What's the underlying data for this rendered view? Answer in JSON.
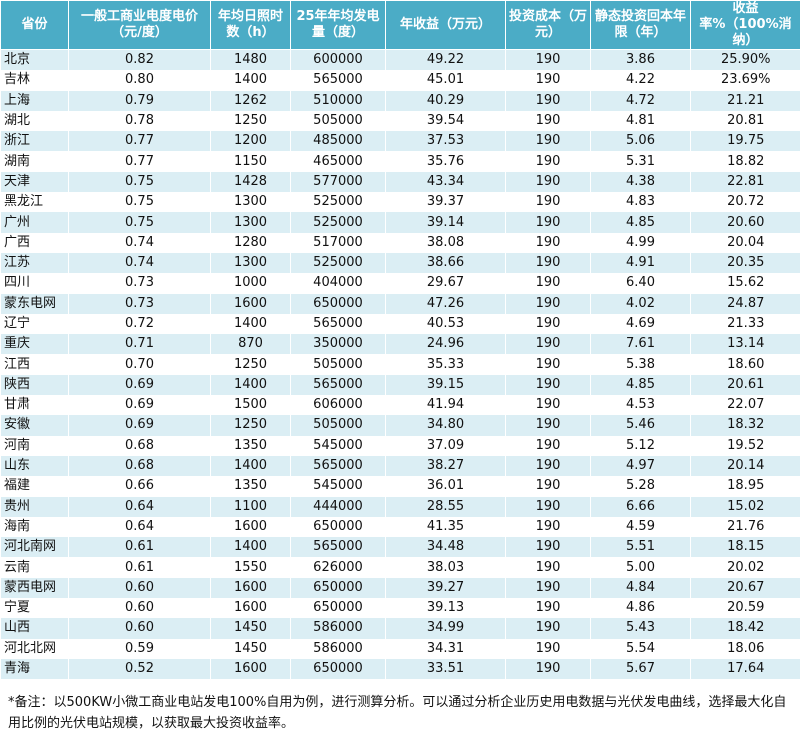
{
  "table": {
    "header": [
      "省份",
      "一般工商业电度电价（元/度）",
      "年均日照时数（h）",
      "25年年均发电量（度）",
      "年收益（万元）",
      "投资成本（万元）",
      "静态投资回本年限（年）",
      "收益率%（100%消纳）"
    ],
    "rows": [
      [
        "北京",
        "0.82",
        "1480",
        "600000",
        "49.22",
        "190",
        "3.86",
        "25.90%"
      ],
      [
        "吉林",
        "0.80",
        "1400",
        "565000",
        "45.01",
        "190",
        "4.22",
        "23.69%"
      ],
      [
        "上海",
        "0.79",
        "1262",
        "510000",
        "40.29",
        "190",
        "4.72",
        "21.21"
      ],
      [
        "湖北",
        "0.78",
        "1250",
        "505000",
        "39.54",
        "190",
        "4.81",
        "20.81"
      ],
      [
        "浙江",
        "0.77",
        "1200",
        "485000",
        "37.53",
        "190",
        "5.06",
        "19.75"
      ],
      [
        "湖南",
        "0.77",
        "1150",
        "465000",
        "35.76",
        "190",
        "5.31",
        "18.82"
      ],
      [
        "天津",
        "0.75",
        "1428",
        "577000",
        "43.34",
        "190",
        "4.38",
        "22.81"
      ],
      [
        "黑龙江",
        "0.75",
        "1300",
        "525000",
        "39.37",
        "190",
        "4.83",
        "20.72"
      ],
      [
        "广州",
        "0.75",
        "1300",
        "525000",
        "39.14",
        "190",
        "4.85",
        "20.60"
      ],
      [
        "广西",
        "0.74",
        "1280",
        "517000",
        "38.08",
        "190",
        "4.99",
        "20.04"
      ],
      [
        "江苏",
        "0.74",
        "1300",
        "525000",
        "38.66",
        "190",
        "4.91",
        "20.35"
      ],
      [
        "四川",
        "0.73",
        "1000",
        "404000",
        "29.67",
        "190",
        "6.40",
        "15.62"
      ],
      [
        "蒙东电网",
        "0.73",
        "1600",
        "650000",
        "47.26",
        "190",
        "4.02",
        "24.87"
      ],
      [
        "辽宁",
        "0.72",
        "1400",
        "565000",
        "40.53",
        "190",
        "4.69",
        "21.33"
      ],
      [
        "重庆",
        "0.71",
        "870",
        "350000",
        "24.96",
        "190",
        "7.61",
        "13.14"
      ],
      [
        "江西",
        "0.70",
        "1250",
        "505000",
        "35.33",
        "190",
        "5.38",
        "18.60"
      ],
      [
        "陕西",
        "0.69",
        "1400",
        "565000",
        "39.15",
        "190",
        "4.85",
        "20.61"
      ],
      [
        "甘肃",
        "0.69",
        "1500",
        "606000",
        "41.94",
        "190",
        "4.53",
        "22.07"
      ],
      [
        "安徽",
        "0.69",
        "1250",
        "505000",
        "34.80",
        "190",
        "5.46",
        "18.32"
      ],
      [
        "河南",
        "0.68",
        "1350",
        "545000",
        "37.09",
        "190",
        "5.12",
        "19.52"
      ],
      [
        "山东",
        "0.68",
        "1400",
        "565000",
        "38.27",
        "190",
        "4.97",
        "20.14"
      ],
      [
        "福建",
        "0.66",
        "1350",
        "545000",
        "36.01",
        "190",
        "5.28",
        "18.95"
      ],
      [
        "贵州",
        "0.64",
        "1100",
        "444000",
        "28.55",
        "190",
        "6.66",
        "15.02"
      ],
      [
        "海南",
        "0.64",
        "1600",
        "650000",
        "41.35",
        "190",
        "4.59",
        "21.76"
      ],
      [
        "河北南网",
        "0.61",
        "1400",
        "565000",
        "34.48",
        "190",
        "5.51",
        "18.15"
      ],
      [
        "云南",
        "0.61",
        "1550",
        "626000",
        "38.03",
        "190",
        "5.00",
        "20.02"
      ],
      [
        "蒙西电网",
        "0.60",
        "1600",
        "650000",
        "39.27",
        "190",
        "4.84",
        "20.67"
      ],
      [
        "宁夏",
        "0.60",
        "1600",
        "650000",
        "39.13",
        "190",
        "4.86",
        "20.59"
      ],
      [
        "山西",
        "0.60",
        "1450",
        "586000",
        "34.99",
        "190",
        "5.43",
        "18.42"
      ],
      [
        "河北北网",
        "0.59",
        "1450",
        "586000",
        "34.31",
        "190",
        "5.54",
        "18.06"
      ],
      [
        "青海",
        "0.52",
        "1600",
        "650000",
        "33.51",
        "190",
        "5.67",
        "17.64"
      ]
    ]
  },
  "footnote": "*备注：以500KW小微工商业电站发电100%自用为例，进行测算分析。可以通过分析企业历史用电数据与光伏发电曲线，选择最大化自用比例的光伏电站规模，以获取最大投资收益率。"
}
